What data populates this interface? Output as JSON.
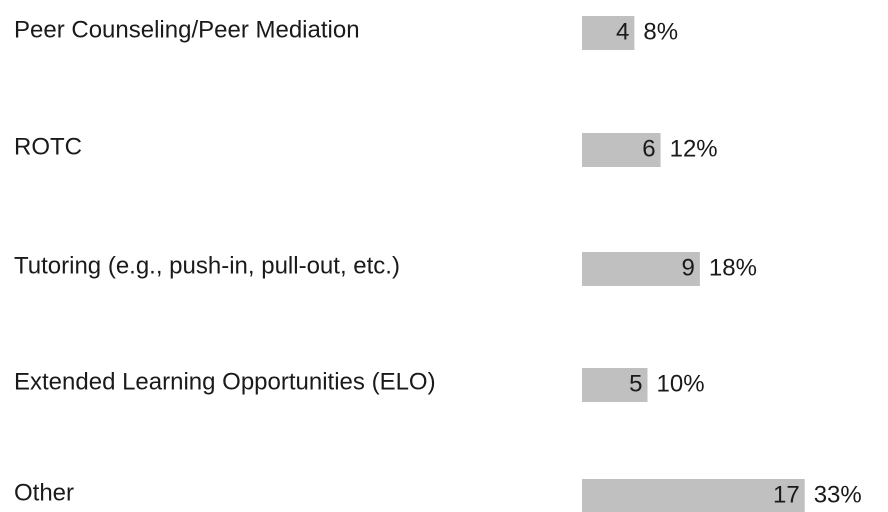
{
  "chart_data": {
    "type": "bar",
    "orientation": "horizontal",
    "categories": [
      "Peer Counseling/Peer Mediation",
      "ROTC",
      "Tutoring (e.g., push-in, pull-out, etc.)",
      "Extended Learning Opportunities (ELO)",
      "Other"
    ],
    "values": [
      4,
      6,
      9,
      5,
      17
    ],
    "percent_labels": [
      "8%",
      "12%",
      "18%",
      "10%",
      "33%"
    ],
    "color": "#c0c0c0"
  }
}
